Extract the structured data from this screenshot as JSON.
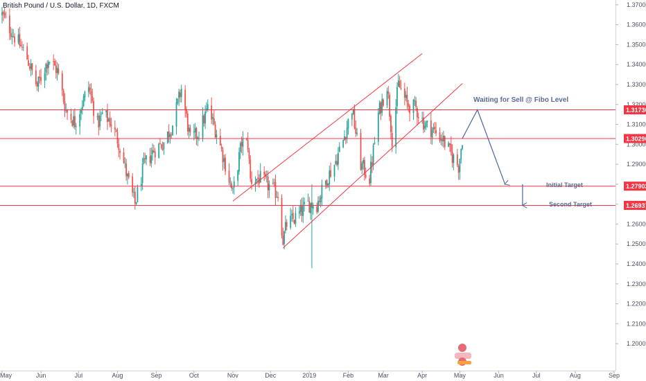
{
  "header": {
    "symbol_title": "British Pound / U.S. Dollar, 1D, FXCM"
  },
  "colors": {
    "up": "#26a69a",
    "down": "#ef5350",
    "level_line": "#f23645",
    "channel_line": "#f23645",
    "projection": "#4a63a8",
    "annotation_text": "#5b6b93",
    "label_text": "#ffffff",
    "axis_text": "#4a4f5c"
  },
  "chart_data": {
    "type": "candlestick",
    "title": "British Pound / U.S. Dollar, 1D, FXCM",
    "ylim": [
      1.195,
      1.371
    ],
    "y_ticks": [
      "1.37000",
      "1.36000",
      "1.35000",
      "1.34000",
      "1.33000",
      "1.32000",
      "1.31000",
      "1.30000",
      "1.29000",
      "1.28000",
      "1.27000",
      "1.26000",
      "1.25000",
      "1.24000",
      "1.23000",
      "1.22000",
      "1.21000",
      "1.20000"
    ],
    "x_ticks": [
      "May",
      "Jun",
      "Jul",
      "Aug",
      "Sep",
      "Oct",
      "Nov",
      "Dec",
      "2019",
      "Feb",
      "Mar",
      "Apr",
      "May",
      "Jun",
      "Jul",
      "Aug",
      "Sep"
    ],
    "price_levels": [
      {
        "label": "1.31730",
        "value": 1.3173
      },
      {
        "label": "1.30290",
        "value": 1.3029
      },
      {
        "label": "1.27902",
        "value": 1.27902
      },
      {
        "label": "1.26937",
        "value": 1.26937
      }
    ],
    "annotations": {
      "sell_note": "Waiting for Sell @ Fibo Level",
      "initial_target": "Initial Target",
      "second_target": "Second Target"
    },
    "price_path": [
      {
        "date": "2018-05-01",
        "close": 1.365
      },
      {
        "date": "2018-05-10",
        "close": 1.355
      },
      {
        "date": "2018-05-20",
        "close": 1.345
      },
      {
        "date": "2018-05-29",
        "close": 1.329
      },
      {
        "date": "2018-06-07",
        "close": 1.343
      },
      {
        "date": "2018-06-14",
        "close": 1.337
      },
      {
        "date": "2018-06-21",
        "close": 1.317
      },
      {
        "date": "2018-06-28",
        "close": 1.311
      },
      {
        "date": "2018-07-09",
        "close": 1.329
      },
      {
        "date": "2018-07-16",
        "close": 1.31
      },
      {
        "date": "2018-07-20",
        "close": 1.315
      },
      {
        "date": "2018-07-26",
        "close": 1.312
      },
      {
        "date": "2018-08-02",
        "close": 1.301
      },
      {
        "date": "2018-08-09",
        "close": 1.283
      },
      {
        "date": "2018-08-15",
        "close": 1.27
      },
      {
        "date": "2018-08-22",
        "close": 1.289
      },
      {
        "date": "2018-08-30",
        "close": 1.297
      },
      {
        "date": "2018-09-07",
        "close": 1.301
      },
      {
        "date": "2018-09-14",
        "close": 1.31
      },
      {
        "date": "2018-09-21",
        "close": 1.328
      },
      {
        "date": "2018-09-28",
        "close": 1.302
      },
      {
        "date": "2018-10-05",
        "close": 1.306
      },
      {
        "date": "2018-10-12",
        "close": 1.318
      },
      {
        "date": "2018-10-19",
        "close": 1.306
      },
      {
        "date": "2018-10-26",
        "close": 1.29
      },
      {
        "date": "2018-11-01",
        "close": 1.275
      },
      {
        "date": "2018-11-08",
        "close": 1.301
      },
      {
        "date": "2018-11-13",
        "close": 1.3
      },
      {
        "date": "2018-11-15",
        "close": 1.282
      },
      {
        "date": "2018-11-22",
        "close": 1.283
      },
      {
        "date": "2018-11-30",
        "close": 1.279
      },
      {
        "date": "2018-12-07",
        "close": 1.275
      },
      {
        "date": "2018-12-11",
        "close": 1.252
      },
      {
        "date": "2018-12-14",
        "close": 1.26
      },
      {
        "date": "2018-12-21",
        "close": 1.263
      },
      {
        "date": "2018-12-31",
        "close": 1.27
      },
      {
        "date": "2019-01-07",
        "close": 1.27
      },
      {
        "date": "2019-01-15",
        "close": 1.283
      },
      {
        "date": "2019-01-21",
        "close": 1.29
      },
      {
        "date": "2019-01-28",
        "close": 1.302
      },
      {
        "date": "2019-02-04",
        "close": 1.318
      },
      {
        "date": "2019-02-11",
        "close": 1.29
      },
      {
        "date": "2019-02-18",
        "close": 1.283
      },
      {
        "date": "2019-02-25",
        "close": 1.315
      },
      {
        "date": "2019-03-04",
        "close": 1.33
      },
      {
        "date": "2019-03-08",
        "close": 1.303
      },
      {
        "date": "2019-03-13",
        "close": 1.33
      },
      {
        "date": "2019-03-20",
        "close": 1.32
      },
      {
        "date": "2019-03-27",
        "close": 1.318
      },
      {
        "date": "2019-04-03",
        "close": 1.31
      },
      {
        "date": "2019-04-10",
        "close": 1.307
      },
      {
        "date": "2019-04-17",
        "close": 1.303
      },
      {
        "date": "2019-04-24",
        "close": 1.295
      },
      {
        "date": "2019-04-30",
        "close": 1.289
      },
      {
        "date": "2019-05-03",
        "close": 1.303
      }
    ],
    "channel": {
      "upper": [
        {
          "date": "2018-11-01",
          "value": 1.2715
        },
        {
          "date": "2019-04-01",
          "value": 1.3455
        }
      ],
      "lower": [
        {
          "date": "2018-12-11",
          "value": 1.248
        },
        {
          "date": "2019-05-03",
          "value": 1.3305
        }
      ]
    },
    "projection": [
      {
        "date": "2019-05-03",
        "value": 1.303
      },
      {
        "date": "2019-05-15",
        "value": 1.3173
      },
      {
        "date": "2019-06-06",
        "value": 1.28
      }
    ],
    "second_target_arrow": {
      "date": "2019-06-20",
      "from": 1.28,
      "to": 1.2694
    }
  }
}
